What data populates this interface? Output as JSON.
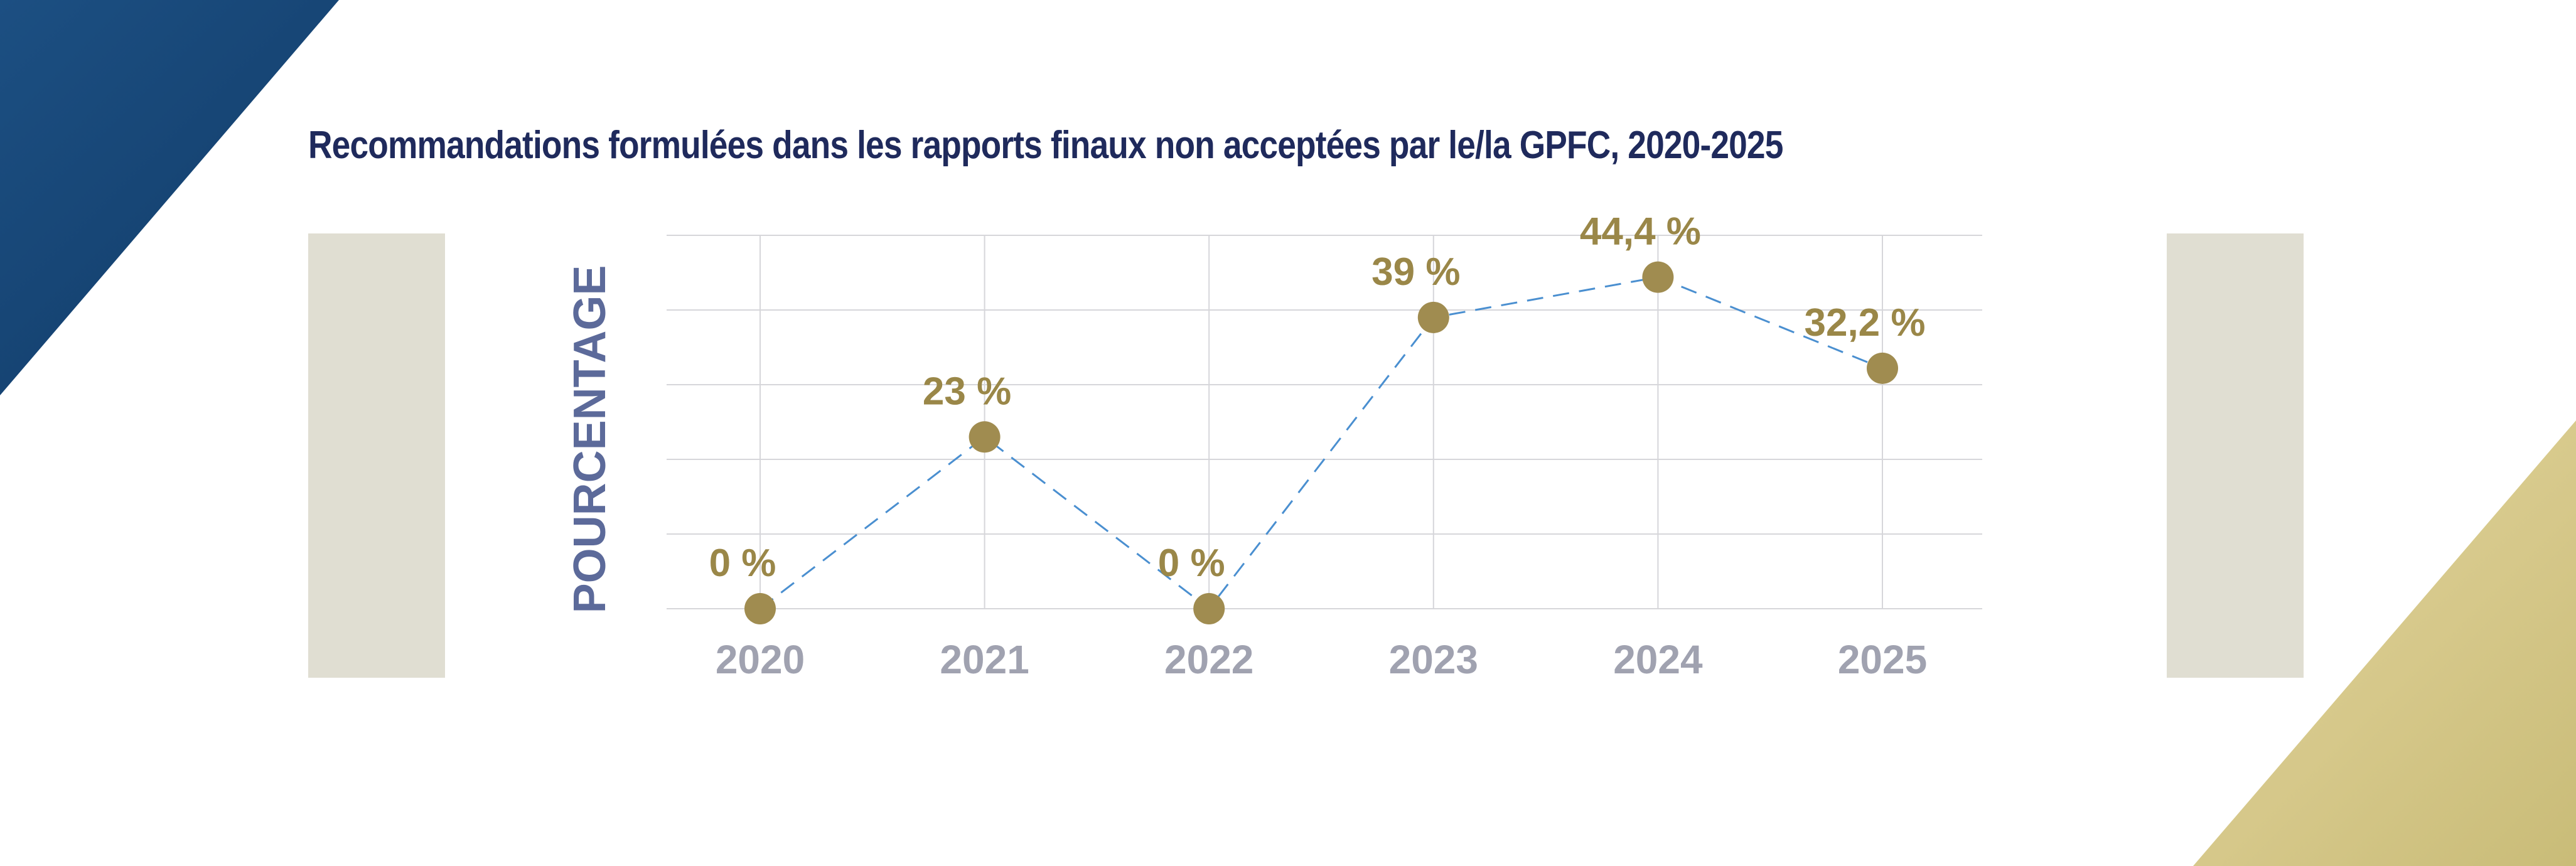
{
  "title": "Recommandations formulées dans les rapports finaux non acceptées par le/la GPFC, 2020-2025",
  "colors": {
    "marker": "#a08c50",
    "label": "#9a8748",
    "line": "#4a8fd0",
    "tick": "#a0a2b0",
    "grid": "#d6d6da",
    "ylabel": "#5c6a9a",
    "title": "#1f2a5c"
  },
  "chart_data": {
    "type": "line",
    "title": "",
    "xlabel": "",
    "ylabel": "POURCENTAGE",
    "categories": [
      "2020",
      "2021",
      "2022",
      "2023",
      "2024",
      "2025"
    ],
    "series": [
      {
        "values": [
          0,
          23,
          0,
          39,
          44.4,
          32.2
        ],
        "labels": [
          "0 %",
          "23 %",
          "0 %",
          "39 %",
          "44,4 %",
          "32,2 %"
        ]
      }
    ],
    "ylim": [
      0,
      50
    ],
    "grid": true,
    "line_style": "dashed",
    "legend": "none"
  }
}
